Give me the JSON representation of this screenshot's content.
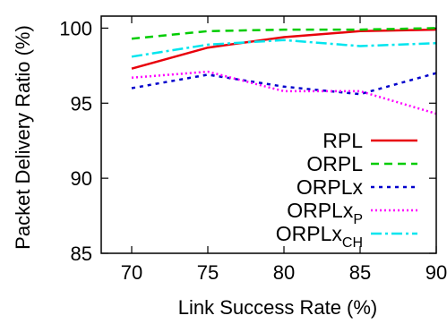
{
  "chart_data": {
    "type": "line",
    "title": "",
    "xlabel": "Link Success Rate (%)",
    "ylabel": "Packet Delivery Ratio (%)",
    "xlim": [
      68,
      90
    ],
    "ylim": [
      85,
      100.8
    ],
    "x": [
      70,
      75,
      80,
      85,
      90
    ],
    "x_ticks": [
      "70",
      "75",
      "80",
      "85",
      "90"
    ],
    "y_ticks": [
      "85",
      "90",
      "95",
      "100"
    ],
    "grid": false,
    "legend_position": "lower-right",
    "series": [
      {
        "name": "RPL",
        "sub": "",
        "color": "#e8000b",
        "dash": "",
        "values": [
          97.3,
          98.7,
          99.4,
          99.8,
          99.9
        ]
      },
      {
        "name": "ORPL",
        "sub": "",
        "color": "#00cc00",
        "dash": "9 6",
        "values": [
          99.3,
          99.8,
          99.9,
          99.9,
          100.0
        ]
      },
      {
        "name": "ORPLx",
        "sub": "",
        "color": "#0000cc",
        "dash": "4 5",
        "values": [
          96.0,
          96.9,
          96.1,
          95.6,
          97.0
        ]
      },
      {
        "name": "ORPLx",
        "sub": "P",
        "color": "#ff00ff",
        "dash": "2 3",
        "values": [
          96.7,
          97.1,
          95.8,
          95.8,
          94.3
        ]
      },
      {
        "name": "ORPLx",
        "sub": "CH",
        "color": "#00e5ee",
        "dash": "12 4 3 4",
        "values": [
          98.1,
          98.9,
          99.2,
          98.8,
          99.0
        ]
      }
    ]
  }
}
